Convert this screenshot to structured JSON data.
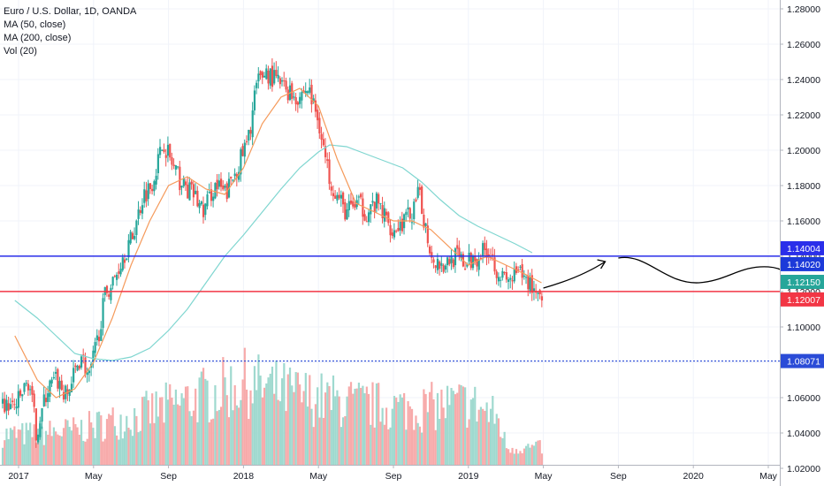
{
  "chart_data": {
    "type": "candlestick",
    "title": "Euro / U.S. Dollar, 1D, OANDA",
    "indicators": [
      "MA (50, close)",
      "MA (200, close)",
      "Vol (20)"
    ],
    "ylim": [
      1.01,
      1.285
    ],
    "y_ticks": [
      "1.28000",
      "1.26000",
      "1.24000",
      "1.22000",
      "1.20000",
      "1.18000",
      "1.16000",
      "1.14000",
      "1.12000",
      "1.10000",
      "1.08000",
      "1.06000",
      "1.04000",
      "1.02000"
    ],
    "x_ticks": [
      {
        "label": "2017",
        "t": 0
      },
      {
        "label": "May",
        "t": 4
      },
      {
        "label": "Sep",
        "t": 8
      },
      {
        "label": "2018",
        "t": 12
      },
      {
        "label": "May",
        "t": 16
      },
      {
        "label": "Sep",
        "t": 20
      },
      {
        "label": "2019",
        "t": 24
      },
      {
        "label": "May",
        "t": 28
      },
      {
        "label": "Sep",
        "t": 32
      },
      {
        "label": "2020",
        "t": 36
      },
      {
        "label": "May",
        "t": 40
      }
    ],
    "price_path": [
      [
        -0.2,
        1.055
      ],
      [
        0.5,
        1.07
      ],
      [
        0.9,
        1.04
      ],
      [
        1.5,
        1.065
      ],
      [
        2.0,
        1.07
      ],
      [
        2.5,
        1.06
      ],
      [
        3.3,
        1.085
      ],
      [
        3.7,
        1.07
      ],
      [
        4.2,
        1.095
      ],
      [
        4.6,
        1.12
      ],
      [
        5.0,
        1.125
      ],
      [
        5.5,
        1.14
      ],
      [
        6.0,
        1.15
      ],
      [
        6.6,
        1.175
      ],
      [
        7.0,
        1.18
      ],
      [
        7.7,
        1.205
      ],
      [
        8.2,
        1.19
      ],
      [
        8.7,
        1.18
      ],
      [
        9.3,
        1.175
      ],
      [
        9.8,
        1.165
      ],
      [
        10.4,
        1.18
      ],
      [
        11.0,
        1.175
      ],
      [
        11.6,
        1.19
      ],
      [
        12.2,
        1.205
      ],
      [
        12.6,
        1.235
      ],
      [
        13.1,
        1.245
      ],
      [
        13.6,
        1.24
      ],
      [
        14.2,
        1.235
      ],
      [
        14.8,
        1.23
      ],
      [
        15.4,
        1.235
      ],
      [
        16.0,
        1.215
      ],
      [
        16.4,
        1.19
      ],
      [
        16.9,
        1.175
      ],
      [
        17.4,
        1.165
      ],
      [
        18.0,
        1.17
      ],
      [
        18.5,
        1.165
      ],
      [
        19.1,
        1.17
      ],
      [
        19.6,
        1.16
      ],
      [
        20.0,
        1.155
      ],
      [
        20.5,
        1.16
      ],
      [
        21.0,
        1.165
      ],
      [
        21.3,
        1.175
      ],
      [
        21.6,
        1.16
      ],
      [
        22.0,
        1.14
      ],
      [
        22.6,
        1.135
      ],
      [
        23.2,
        1.14
      ],
      [
        23.8,
        1.135
      ],
      [
        24.4,
        1.14
      ],
      [
        25.0,
        1.145
      ],
      [
        25.6,
        1.13
      ],
      [
        26.0,
        1.125
      ],
      [
        26.6,
        1.13
      ],
      [
        27.2,
        1.125
      ],
      [
        27.6,
        1.12
      ],
      [
        27.9,
        1.12
      ]
    ],
    "ma50": [
      [
        -0.2,
        1.095
      ],
      [
        1.0,
        1.07
      ],
      [
        2.0,
        1.06
      ],
      [
        3.0,
        1.065
      ],
      [
        4.0,
        1.08
      ],
      [
        5.0,
        1.105
      ],
      [
        6.0,
        1.135
      ],
      [
        7.0,
        1.16
      ],
      [
        8.0,
        1.18
      ],
      [
        9.0,
        1.185
      ],
      [
        10.0,
        1.178
      ],
      [
        11.0,
        1.175
      ],
      [
        12.0,
        1.19
      ],
      [
        13.0,
        1.215
      ],
      [
        14.0,
        1.23
      ],
      [
        15.0,
        1.235
      ],
      [
        16.0,
        1.225
      ],
      [
        17.0,
        1.195
      ],
      [
        18.0,
        1.17
      ],
      [
        19.0,
        1.165
      ],
      [
        20.0,
        1.16
      ],
      [
        21.0,
        1.16
      ],
      [
        22.0,
        1.155
      ],
      [
        23.0,
        1.145
      ],
      [
        24.0,
        1.135
      ],
      [
        25.0,
        1.14
      ],
      [
        26.0,
        1.135
      ],
      [
        27.0,
        1.13
      ],
      [
        27.9,
        1.125
      ]
    ],
    "ma200": [
      [
        -0.2,
        1.115
      ],
      [
        1.0,
        1.105
      ],
      [
        2.0,
        1.095
      ],
      [
        3.0,
        1.085
      ],
      [
        4.0,
        1.082
      ],
      [
        5.0,
        1.081
      ],
      [
        6.0,
        1.083
      ],
      [
        7.0,
        1.088
      ],
      [
        8.0,
        1.098
      ],
      [
        9.0,
        1.11
      ],
      [
        10.0,
        1.125
      ],
      [
        11.0,
        1.14
      ],
      [
        12.0,
        1.152
      ],
      [
        13.0,
        1.165
      ],
      [
        14.0,
        1.178
      ],
      [
        15.0,
        1.19
      ],
      [
        16.0,
        1.199
      ],
      [
        16.6,
        1.203
      ],
      [
        17.5,
        1.202
      ],
      [
        18.5,
        1.198
      ],
      [
        19.5,
        1.194
      ],
      [
        20.5,
        1.19
      ],
      [
        21.5,
        1.182
      ],
      [
        22.5,
        1.172
      ],
      [
        23.5,
        1.163
      ],
      [
        24.5,
        1.157
      ],
      [
        25.5,
        1.152
      ],
      [
        26.5,
        1.147
      ],
      [
        27.4,
        1.142
      ]
    ],
    "volume_profile": [
      [
        0,
        0.35
      ],
      [
        3,
        0.4
      ],
      [
        6,
        0.55
      ],
      [
        9,
        0.75
      ],
      [
        12,
        0.95
      ],
      [
        15,
        0.8
      ],
      [
        18,
        0.7
      ],
      [
        21,
        0.65
      ],
      [
        24,
        0.72
      ],
      [
        25.5,
        0.55
      ],
      [
        26,
        0.2
      ],
      [
        28,
        0.2
      ]
    ],
    "horizontal_levels": [
      {
        "value": 1.14004,
        "label": "1.14004",
        "color": "#2a2eea",
        "style": "solid"
      },
      {
        "value": 1.12007,
        "label": "1.12007",
        "color": "#f23645",
        "style": "solid"
      },
      {
        "value": 1.08071,
        "label": "1.08071",
        "color": "#2a4bd7",
        "style": "dotted"
      }
    ],
    "price_tags": [
      {
        "value": 1.14004,
        "label": "1.14004",
        "bg": "#2a2eea",
        "fg": "#ffffff",
        "pos": "top"
      },
      {
        "value": 1.14004,
        "label": "1.14020",
        "bg": "#1c3ad9",
        "fg": "#ffffff",
        "pos": "below"
      },
      {
        "value": 1.1215,
        "label": "1.12150",
        "bg": "#26a69a",
        "fg": "#ffffff",
        "pos": "above"
      },
      {
        "value": 1.12007,
        "label": "1.12007",
        "bg": "#f23645",
        "fg": "#ffffff",
        "pos": "below"
      },
      {
        "value": 1.08071,
        "label": "1.08071",
        "bg": "#2a4bd7",
        "fg": "#ffffff",
        "pos": "center"
      }
    ],
    "projection": [
      [
        28.0,
        1.122
      ],
      [
        29.5,
        1.13
      ],
      [
        31.0,
        1.138
      ],
      [
        32.5,
        1.14
      ],
      [
        34.0,
        1.13
      ],
      [
        35.5,
        1.124
      ],
      [
        37.0,
        1.127
      ],
      [
        38.5,
        1.134
      ],
      [
        40.0,
        1.135
      ],
      [
        41.2,
        1.128
      ],
      [
        41.8,
        1.11
      ],
      [
        41.9,
        1.081
      ]
    ],
    "colors": {
      "up": "#26a69a",
      "down": "#ef5350",
      "vol_up": "#9fd9cf",
      "vol_down": "#f7aaaa",
      "ma50": "#f59a5b",
      "ma200": "#7fd6d0",
      "grid": "#f0f3fa",
      "axis_text": "#131722"
    }
  }
}
